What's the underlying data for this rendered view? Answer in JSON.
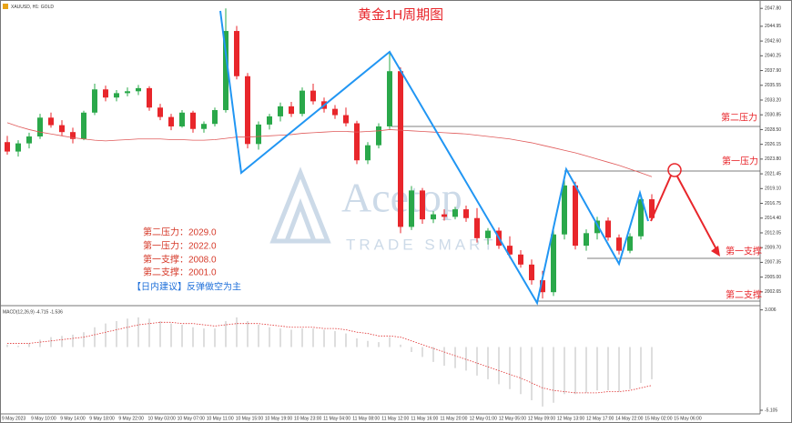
{
  "chart_data": [
    {
      "type": "candlestick",
      "title": "黄金1H周期图",
      "symbol_label": "XAUUSD, H1: GOLD",
      "open": [
        2026.5,
        2025.0,
        2026.3,
        2027.4,
        2030.4,
        2029.2,
        2028.1,
        2027.0,
        2031.2,
        2034.9,
        2033.6,
        2034.3,
        2034.6,
        2035.1,
        2032.0,
        2030.5,
        2029.0,
        2031.2,
        2028.6,
        2029.4,
        2031.6,
        2044.2,
        2037.0,
        2026.2,
        2029.3,
        2030.6,
        2032.2,
        2031.0,
        2034.7,
        2033.0,
        2031.8,
        2030.8,
        2029.5,
        2023.6,
        2026.0,
        2029.0,
        2037.8,
        2013.0,
        2018.8,
        2014.2,
        2015.0,
        2014.6,
        2015.8,
        2014.4,
        2011.2,
        2012.4,
        2010.0,
        2008.6,
        2007.0,
        2004.5,
        2002.6,
        2011.8,
        2019.6,
        2010.0,
        2012.0,
        2014.0,
        2011.3,
        2009.2,
        2011.5,
        2017.4
      ],
      "high": [
        2027.5,
        2026.8,
        2028.0,
        2031.0,
        2031.2,
        2030.0,
        2028.8,
        2031.5,
        2035.8,
        2035.5,
        2034.8,
        2035.2,
        2035.6,
        2035.4,
        2032.6,
        2031.0,
        2031.6,
        2031.5,
        2029.8,
        2032.0,
        2047.8,
        2045.0,
        2037.5,
        2029.8,
        2031.0,
        2032.8,
        2032.9,
        2035.2,
        2035.8,
        2033.6,
        2032.4,
        2032.0,
        2029.9,
        2026.5,
        2029.5,
        2040.8,
        2038.4,
        2019.5,
        2019.2,
        2015.5,
        2015.8,
        2016.2,
        2016.4,
        2016.0,
        2012.8,
        2012.9,
        2011.5,
        2009.3,
        2007.8,
        2006.0,
        2012.5,
        2020.6,
        2020.2,
        2012.6,
        2014.6,
        2014.5,
        2011.8,
        2012.0,
        2018.0,
        2018.2
      ],
      "low": [
        2024.5,
        2024.2,
        2025.5,
        2027.0,
        2028.8,
        2027.5,
        2026.3,
        2026.8,
        2030.8,
        2033.0,
        2033.0,
        2033.8,
        2034.0,
        2031.5,
        2030.0,
        2028.4,
        2028.8,
        2028.0,
        2028.0,
        2029.0,
        2031.2,
        2036.5,
        2025.5,
        2025.3,
        2028.5,
        2029.8,
        2030.5,
        2030.6,
        2032.5,
        2031.2,
        2030.2,
        2029.0,
        2023.0,
        2023.0,
        2025.5,
        2028.6,
        2012.0,
        2012.5,
        2013.5,
        2013.6,
        2014.0,
        2014.2,
        2013.8,
        2010.5,
        2010.2,
        2009.5,
        2008.0,
        2006.5,
        2003.8,
        2001.6,
        2002.0,
        2011.0,
        2009.4,
        2009.2,
        2011.0,
        2010.8,
        2008.6,
        2008.8,
        2011.0,
        2014.2
      ],
      "close": [
        2025.0,
        2026.3,
        2027.4,
        2030.4,
        2029.2,
        2028.1,
        2027.0,
        2031.2,
        2034.9,
        2033.6,
        2034.3,
        2034.6,
        2035.1,
        2032.0,
        2030.5,
        2029.0,
        2031.2,
        2028.6,
        2029.4,
        2031.6,
        2044.2,
        2037.0,
        2026.2,
        2029.3,
        2030.6,
        2032.2,
        2031.0,
        2034.7,
        2033.0,
        2031.8,
        2030.8,
        2029.5,
        2023.6,
        2026.0,
        2029.0,
        2037.8,
        2013.0,
        2018.8,
        2014.2,
        2015.0,
        2014.6,
        2015.8,
        2014.4,
        2011.2,
        2012.4,
        2010.0,
        2008.6,
        2007.0,
        2004.5,
        2002.6,
        2011.8,
        2019.6,
        2010.0,
        2012.0,
        2014.0,
        2011.3,
        2009.2,
        2011.5,
        2017.4,
        2014.4
      ],
      "up_color": "#2aa84a",
      "down_color": "#e8262b",
      "ma": {
        "color": "#e05a5a",
        "values": [
          2029.6,
          2029.0,
          2028.5,
          2028.1,
          2027.8,
          2027.5,
          2027.2,
          2027.0,
          2026.8,
          2026.7,
          2026.8,
          2026.9,
          2027.0,
          2027.0,
          2027.0,
          2026.9,
          2026.9,
          2026.8,
          2026.8,
          2026.9,
          2027.1,
          2027.3,
          2027.3,
          2027.4,
          2027.5,
          2027.6,
          2027.7,
          2027.9,
          2028.0,
          2028.1,
          2028.2,
          2028.2,
          2028.1,
          2028.2,
          2028.3,
          2028.5,
          2028.4,
          2028.3,
          2028.2,
          2028.1,
          2028.0,
          2027.9,
          2027.8,
          2027.6,
          2027.4,
          2027.2,
          2027.0,
          2026.7,
          2026.4,
          2026.0,
          2025.6,
          2025.2,
          2024.8,
          2024.3,
          2023.8,
          2023.3,
          2022.8,
          2022.2,
          2021.6,
          2021.0
        ]
      },
      "ylim": [
        2000.6,
        2048.7
      ],
      "yticks": [
        {
          "value": 2047.8,
          "label": "2047.80"
        },
        2044.95,
        {
          "value": 2042.6,
          "label": "2042.60"
        },
        2040.25,
        {
          "value": 2037.9,
          "label": "2037.90"
        },
        2035.55,
        {
          "value": 2033.2,
          "label": "2033.20"
        },
        2030.85,
        {
          "value": 2028.5,
          "label": "2028.50"
        },
        2026.15,
        {
          "value": 2023.8,
          "label": "2023.80"
        },
        2021.45,
        {
          "value": 2019.1,
          "label": "2019.10"
        },
        2016.75,
        {
          "value": 2014.4,
          "label": "2014.40"
        },
        2012.05,
        {
          "value": 2009.7,
          "label": "2009.70"
        },
        2007.35,
        {
          "value": 2005.0,
          "label": "2005.00"
        },
        2002.65
      ],
      "x_labels": [
        "9 May 2023",
        "9 May 10:00",
        "9 May 14:00",
        "9 May 18:00",
        "9 May 22:00",
        "10 May 03:00",
        "10 May 07:00",
        "10 May 11:00",
        "10 May 15:00",
        "10 May 19:00",
        "10 May 23:00",
        "11 May 04:00",
        "11 May 08:00",
        "11 May 12:00",
        "11 May 16:00",
        "11 May 20:00",
        "12 May 01:00",
        "12 May 05:00",
        "12 May 09:00",
        "12 May 13:00",
        "12 May 17:00",
        "14 May 22:00",
        "15 May 02:00",
        "15 May 06:00"
      ]
    },
    {
      "type": "macd",
      "label": "MACD(12,26,9) -4.715 -1.536",
      "values": [
        0.2,
        0.1,
        0.3,
        0.6,
        0.8,
        0.9,
        1.0,
        1.2,
        1.6,
        1.9,
        2.1,
        2.3,
        2.4,
        2.3,
        2.1,
        1.9,
        1.8,
        1.6,
        1.5,
        1.5,
        2.1,
        2.4,
        2.1,
        1.8,
        1.6,
        1.5,
        1.4,
        1.5,
        1.5,
        1.4,
        1.3,
        1.1,
        0.7,
        0.5,
        0.4,
        0.8,
        0.2,
        -0.4,
        -0.8,
        -1.2,
        -1.5,
        -1.7,
        -1.9,
        -2.3,
        -2.6,
        -3.0,
        -3.4,
        -3.8,
        -4.3,
        -4.8,
        -4.5,
        -3.8,
        -3.8,
        -3.7,
        -3.5,
        -3.5,
        -3.6,
        -3.4,
        -2.9,
        -2.6
      ],
      "signal": [
        0.3,
        0.3,
        0.3,
        0.4,
        0.5,
        0.6,
        0.7,
        0.8,
        1.0,
        1.2,
        1.4,
        1.6,
        1.8,
        1.9,
        2.0,
        2.0,
        1.9,
        1.9,
        1.8,
        1.7,
        1.8,
        1.9,
        1.9,
        1.9,
        1.8,
        1.7,
        1.6,
        1.6,
        1.6,
        1.5,
        1.5,
        1.4,
        1.2,
        1.1,
        0.9,
        0.9,
        0.8,
        0.5,
        0.2,
        -0.1,
        -0.4,
        -0.7,
        -1.0,
        -1.3,
        -1.6,
        -1.9,
        -2.2,
        -2.5,
        -2.9,
        -3.3,
        -3.5,
        -3.6,
        -3.7,
        -3.7,
        -3.7,
        -3.6,
        -3.6,
        -3.5,
        -3.3,
        -3.1
      ],
      "bar_color": "#bdbdbd",
      "signal_color": "#e03030",
      "ylim": [
        -5.4,
        3.2
      ],
      "yticks": [
        3.006,
        -5.105
      ]
    }
  ],
  "annotations": {
    "level_labels": [
      "第二压力",
      "第一压力",
      "第一支撑",
      "第二支撑"
    ],
    "notes": [
      "第二压力：2029.0",
      "第一压力：2022.0",
      "第一支撑：2008.0",
      "第二支撑：2001.0"
    ],
    "advice": "【日内建议】反弹做空为主"
  },
  "watermark": {
    "name": "Acetop",
    "tagline": "TRADE SMART"
  }
}
